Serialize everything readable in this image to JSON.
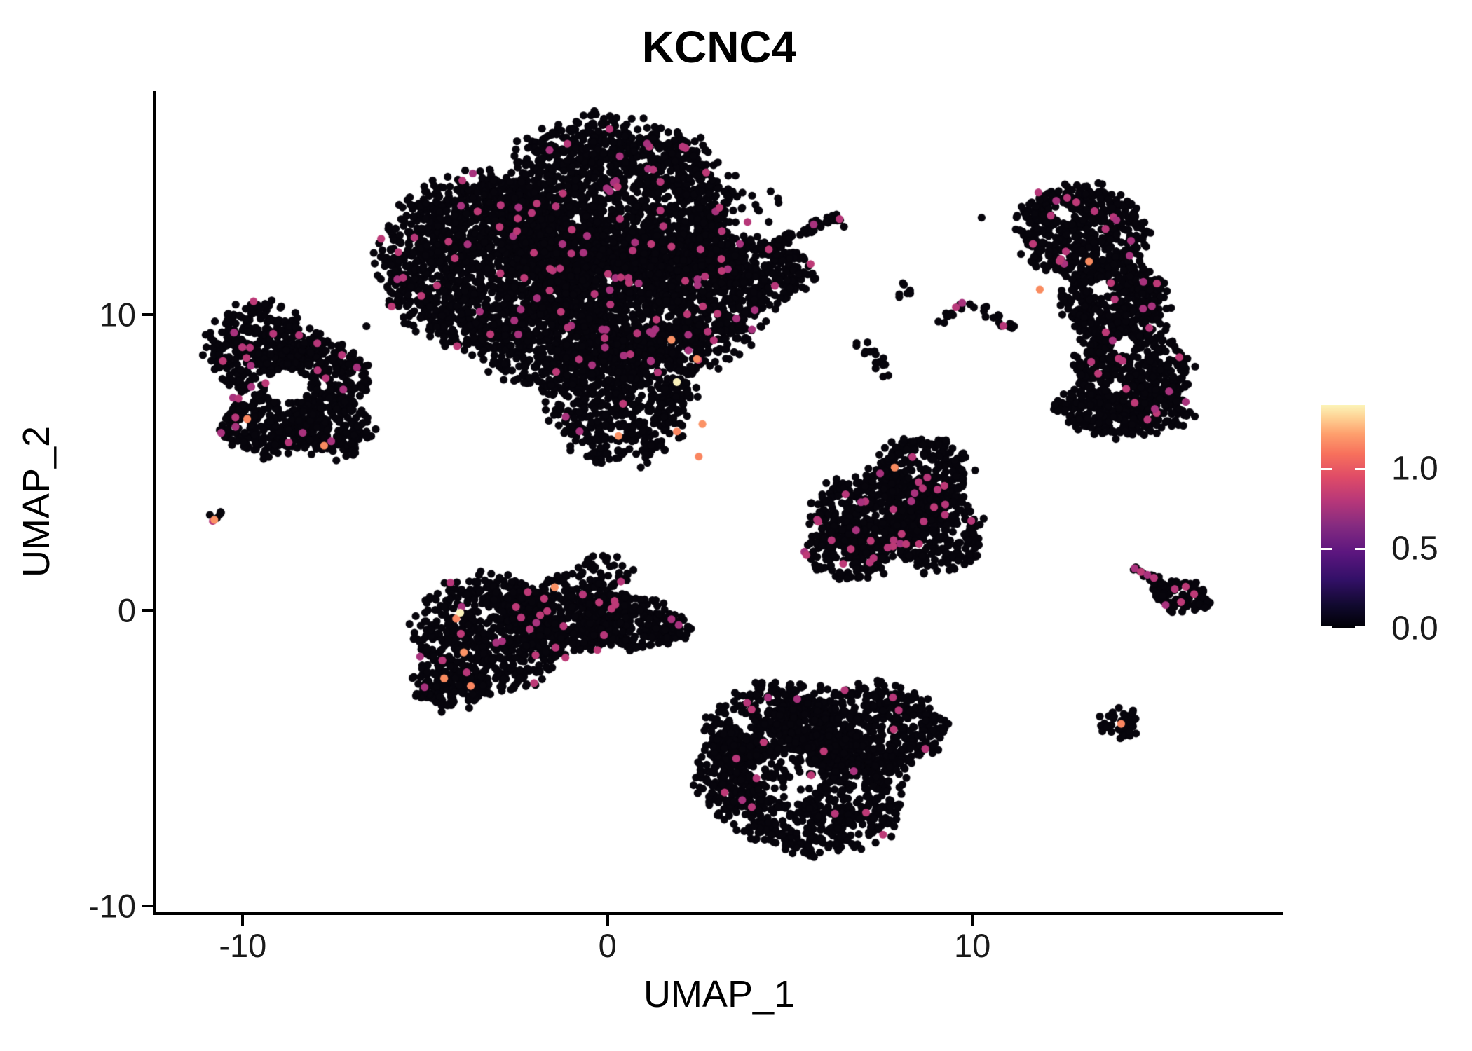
{
  "title": "KCNC4",
  "chart_data": {
    "type": "scatter",
    "title": "KCNC4",
    "xlabel": "UMAP_1",
    "ylabel": "UMAP_2",
    "xlim": [
      -12.39,
      18.51
    ],
    "ylim": [
      -10.21,
      17.56
    ],
    "grid": false,
    "x_ticks": [
      {
        "value": -10,
        "label": "-10"
      },
      {
        "value": 0,
        "label": "0"
      },
      {
        "value": 10,
        "label": "10"
      }
    ],
    "y_ticks": [
      {
        "value": -10,
        "label": "-10"
      },
      {
        "value": 0,
        "label": "0"
      },
      {
        "value": 10,
        "label": "10"
      }
    ],
    "legend": {
      "position": "right",
      "range": [
        0,
        1.4
      ],
      "colormap": "magma",
      "ticks": [
        {
          "value": 0.0,
          "label": "0.0"
        },
        {
          "value": 0.5,
          "label": "0.5"
        },
        {
          "value": 1.0,
          "label": "1.0"
        }
      ],
      "gradient_stops": [
        {
          "at": 0.0,
          "color": "#000004"
        },
        {
          "at": 0.1,
          "color": "#10092d"
        },
        {
          "at": 0.22,
          "color": "#331068"
        },
        {
          "at": 0.34,
          "color": "#5c167f"
        },
        {
          "at": 0.46,
          "color": "#852b80"
        },
        {
          "at": 0.57,
          "color": "#b73779"
        },
        {
          "at": 0.68,
          "color": "#e04c67"
        },
        {
          "at": 0.78,
          "color": "#f7705c"
        },
        {
          "at": 0.87,
          "color": "#fe9f6d"
        },
        {
          "at": 0.94,
          "color": "#fecf92"
        },
        {
          "at": 1.0,
          "color": "#fcf4b8"
        }
      ]
    },
    "point_radius_px": 5.6,
    "colors": {
      "zero": "#07050c",
      "mid": [
        "#a8327d",
        "#b73779",
        "#bd3a77"
      ],
      "high": [
        "#f98b5f",
        "#fb9265",
        "#fa8660"
      ],
      "max": "#fbf2bb"
    },
    "seed": 42,
    "clusters": [
      {
        "name": "top-center-main",
        "n_mid": 128,
        "blobs": [
          [
            -3.4,
            11.8,
            2.75,
            2.75,
            0,
            1500
          ],
          [
            0.1,
            13.5,
            3.3,
            3.0,
            0,
            1900
          ],
          [
            1.2,
            10.3,
            2.9,
            2.3,
            0,
            1300
          ],
          [
            0.3,
            7.3,
            2.0,
            2.3,
            0,
            620
          ],
          [
            -1.7,
            8.9,
            1.8,
            1.3,
            0,
            380
          ],
          [
            4.0,
            11.6,
            1.65,
            1.0,
            -20,
            300
          ],
          [
            3.8,
            13.7,
            1.0,
            0.75,
            0,
            16
          ],
          [
            4.35,
            10.5,
            0.55,
            0.4,
            0,
            12
          ]
        ],
        "lines": [
          [
            4.2,
            12.15,
            6.35,
            13.35,
            0.32,
            55
          ]
        ]
      },
      {
        "name": "left-ring",
        "n_mid": 30,
        "blobs": [
          [
            -9.6,
            8.9,
            1.35,
            1.5,
            0,
            330
          ],
          [
            -7.95,
            7.95,
            1.4,
            1.3,
            0,
            320
          ],
          [
            -9.3,
            6.3,
            1.3,
            1.05,
            0,
            230
          ],
          [
            -7.6,
            6.15,
            1.15,
            0.95,
            0,
            185
          ]
        ],
        "lines": []
      },
      {
        "name": "far-left-tiny",
        "n_mid": 0,
        "blobs": [
          [
            -10.72,
            3.15,
            0.28,
            0.25,
            0,
            5
          ]
        ],
        "lines": []
      },
      {
        "name": "center-left-bottom",
        "n_mid": 30,
        "blobs": [
          [
            -3.3,
            -0.8,
            1.95,
            1.9,
            0,
            640
          ],
          [
            -1.2,
            -0.2,
            1.6,
            1.3,
            0,
            380
          ],
          [
            0.55,
            -0.35,
            1.5,
            0.9,
            -12,
            255
          ],
          [
            -0.1,
            1.3,
            0.75,
            0.6,
            0,
            45
          ],
          [
            -4.3,
            -2.5,
            1.0,
            0.85,
            0,
            150
          ],
          [
            1.7,
            -0.55,
            0.6,
            0.45,
            0,
            50
          ]
        ],
        "lines": []
      },
      {
        "name": "bottom-center",
        "n_mid": 20,
        "blobs": [
          [
            4.6,
            -4.1,
            1.9,
            1.6,
            0,
            520
          ],
          [
            7.0,
            -4.0,
            2.2,
            1.5,
            0,
            560
          ],
          [
            5.7,
            -6.3,
            2.4,
            1.9,
            0,
            700
          ],
          [
            3.6,
            -5.5,
            1.2,
            1.4,
            0,
            240
          ]
        ],
        "lines": []
      },
      {
        "name": "mid-right-triangle",
        "n_mid": 36,
        "blobs": [
          [
            8.6,
            4.6,
            1.35,
            1.3,
            0,
            310
          ],
          [
            7.3,
            3.2,
            1.7,
            1.5,
            0,
            430
          ],
          [
            9.0,
            2.6,
            1.35,
            1.2,
            0,
            265
          ],
          [
            6.6,
            2.0,
            1.2,
            0.9,
            0,
            170
          ]
        ],
        "lines": []
      },
      {
        "name": "right-banana",
        "n_mid": 30,
        "blobs": [
          [
            13.0,
            12.8,
            1.75,
            1.55,
            0,
            520
          ],
          [
            13.9,
            10.4,
            1.4,
            1.6,
            0,
            430
          ],
          [
            14.4,
            8.1,
            1.55,
            1.5,
            0,
            430
          ],
          [
            14.2,
            6.8,
            1.85,
            0.95,
            0,
            330
          ]
        ],
        "lines": []
      },
      {
        "name": "island-a",
        "n_mid": 0,
        "blobs": [
          [
            8.2,
            10.8,
            0.4,
            0.28,
            0,
            9
          ]
        ],
        "lines": []
      },
      {
        "name": "island-b",
        "n_mid": 0,
        "blobs": [
          [
            7.05,
            8.85,
            0.38,
            0.3,
            0,
            8
          ],
          [
            7.6,
            8.25,
            0.38,
            0.3,
            0,
            8
          ]
        ],
        "lines": []
      },
      {
        "name": "check-streaks",
        "n_mid": 0,
        "blobs": [],
        "lines": [
          [
            9.1,
            9.75,
            9.95,
            10.55,
            0.3,
            14
          ],
          [
            10.05,
            10.4,
            11.15,
            9.5,
            0.3,
            18
          ]
        ]
      },
      {
        "name": "right-streak",
        "n_mid": 0,
        "blobs": [
          [
            15.8,
            0.5,
            0.8,
            0.55,
            -15,
            95
          ]
        ],
        "lines": [
          [
            14.4,
            1.45,
            15.25,
            0.9,
            0.3,
            22
          ]
        ]
      },
      {
        "name": "bottom-right-dot",
        "n_mid": 0,
        "blobs": [
          [
            14.1,
            -3.8,
            0.56,
            0.52,
            0,
            42
          ]
        ],
        "lines": []
      },
      {
        "name": "scatter-singles",
        "n_mid": 0,
        "blobs": [
          [
            10.3,
            13.2,
            0.05,
            0.05,
            0,
            1
          ],
          [
            6.5,
            12.9,
            0.05,
            0.05,
            0,
            1
          ],
          [
            -8.5,
            9.85,
            0.06,
            0.06,
            0,
            1
          ],
          [
            -6.55,
            9.6,
            0.06,
            0.06,
            0,
            1
          ]
        ],
        "lines": []
      }
    ],
    "holes": [
      [
        -8.8,
        7.6,
        0.58,
        0
      ],
      [
        4.95,
        -5.6,
        0.9,
        0.18
      ],
      [
        13.5,
        10.9,
        0.3,
        0
      ],
      [
        14.15,
        8.95,
        0.32,
        0
      ],
      [
        12.5,
        13.4,
        0.26,
        0
      ],
      [
        13.9,
        7.55,
        0.24,
        0
      ]
    ],
    "special_points": {
      "mid": [
        [
          -10.82,
          3.02
        ],
        [
          9.55,
          10.25
        ],
        [
          9.72,
          10.4
        ],
        [
          10.85,
          9.62
        ],
        [
          14.45,
          1.42
        ],
        [
          14.62,
          1.3
        ],
        [
          14.8,
          1.2
        ],
        [
          14.98,
          1.1
        ],
        [
          15.55,
          0.72
        ],
        [
          15.85,
          0.8
        ],
        [
          16.08,
          0.55
        ],
        [
          15.72,
          0.28
        ],
        [
          15.3,
          0.18
        ],
        [
          12.3,
          13.85
        ],
        [
          12.6,
          13.95
        ],
        [
          12.85,
          13.8
        ],
        [
          12.15,
          13.35
        ],
        [
          13.35,
          13.5
        ],
        [
          13.95,
          13.2
        ],
        [
          13.65,
          12.9
        ],
        [
          14.35,
          12.5
        ],
        [
          4.4,
          -2.95
        ],
        [
          5.2,
          -3.0
        ],
        [
          6.5,
          -2.7
        ],
        [
          3.95,
          -3.35
        ],
        [
          5.65,
          13.05
        ],
        [
          1.75,
          -0.3
        ],
        [
          1.95,
          -0.5
        ]
      ],
      "high": [
        [
          0.3,
          5.9
        ],
        [
          1.9,
          6.05
        ],
        [
          2.6,
          6.3
        ],
        [
          2.5,
          5.2
        ],
        [
          1.75,
          9.15
        ],
        [
          2.45,
          8.5
        ],
        [
          7.87,
          4.83
        ],
        [
          -9.88,
          6.47
        ],
        [
          -7.77,
          5.57
        ],
        [
          -10.78,
          3.06
        ],
        [
          -4.15,
          -0.28
        ],
        [
          -3.94,
          -1.42
        ],
        [
          -4.48,
          -2.3
        ],
        [
          -3.75,
          -2.56
        ],
        [
          -1.45,
          0.78
        ],
        [
          13.2,
          11.8
        ],
        [
          11.85,
          10.85
        ],
        [
          14.08,
          -3.84
        ]
      ],
      "max": [
        [
          1.9,
          7.72
        ],
        [
          -4.04,
          -0.08
        ]
      ]
    }
  }
}
